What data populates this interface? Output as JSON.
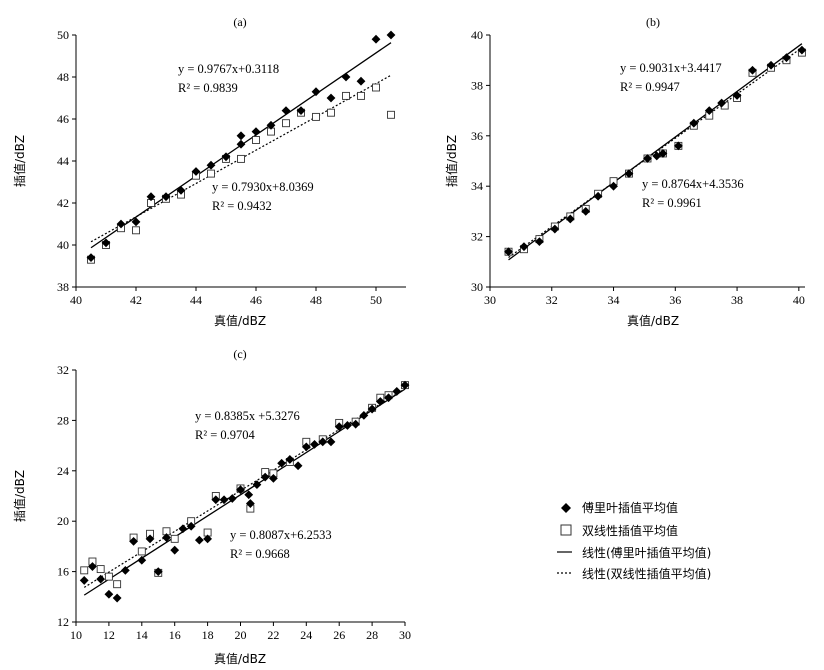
{
  "legend": {
    "items": [
      {
        "label": "傅里叶插值平均值",
        "kind": "diamond"
      },
      {
        "label": "双线性插值平均值",
        "kind": "square"
      },
      {
        "label": "线性(傅里叶插值平均值)",
        "kind": "solid"
      },
      {
        "label": "线性(双线性插值平均值)",
        "kind": "dotted"
      }
    ]
  },
  "chart_data": [
    {
      "type": "scatter",
      "title": "(a)",
      "xlabel": "真值/dBZ",
      "ylabel": "插值/dBZ",
      "xlim": [
        40,
        51
      ],
      "ylim": [
        38,
        50
      ],
      "xticks": [
        40,
        42,
        44,
        46,
        48,
        50
      ],
      "yticks": [
        38,
        40,
        42,
        44,
        46,
        48,
        50
      ],
      "series": [
        {
          "marker": "diamond",
          "x": [
            40.5,
            41.0,
            41.5,
            42.0,
            42.5,
            43.0,
            43.5,
            44.0,
            44.5,
            45.0,
            45.5,
            45.5,
            46.0,
            46.5,
            47.0,
            47.5,
            48.0,
            48.5,
            49.0,
            49.5,
            50.0,
            50.5
          ],
          "y": [
            39.4,
            40.1,
            41.0,
            41.1,
            42.3,
            42.3,
            42.6,
            43.5,
            43.8,
            44.2,
            44.8,
            45.2,
            45.4,
            45.7,
            46.4,
            46.4,
            47.3,
            47.0,
            48.0,
            47.8,
            49.8,
            50.0
          ]
        },
        {
          "marker": "square",
          "x": [
            40.5,
            41.0,
            41.5,
            42.0,
            42.5,
            43.0,
            43.5,
            44.0,
            44.5,
            45.0,
            45.5,
            46.0,
            46.5,
            47.0,
            47.5,
            48.0,
            48.5,
            49.0,
            49.5,
            50.0,
            50.5
          ],
          "y": [
            39.3,
            40.0,
            40.8,
            40.7,
            42.0,
            42.2,
            42.4,
            43.3,
            43.4,
            44.1,
            44.1,
            45.0,
            45.4,
            45.8,
            46.3,
            46.1,
            46.3,
            47.1,
            47.1,
            47.5,
            46.2
          ]
        }
      ],
      "fits": [
        {
          "style": "solid",
          "slope": 0.9767,
          "intercept": 0.3118,
          "equation": "y = 0.9767x+0.3118",
          "r2": "R² = 0.9839"
        },
        {
          "style": "dotted",
          "slope": 0.793,
          "intercept": 8.0369,
          "equation": "y = 0.7930x+8.0369",
          "r2": "R² = 0.9432"
        }
      ]
    },
    {
      "type": "scatter",
      "title": "(b)",
      "xlabel": "真值/dBZ",
      "ylabel": "插值/dBZ",
      "xlim": [
        30,
        40.2
      ],
      "ylim": [
        30,
        40
      ],
      "xticks": [
        30,
        32,
        34,
        36,
        38,
        40
      ],
      "yticks": [
        30,
        32,
        34,
        36,
        38,
        40
      ],
      "series": [
        {
          "marker": "diamond",
          "x": [
            30.6,
            31.1,
            31.6,
            32.1,
            32.6,
            33.1,
            33.5,
            34.0,
            34.5,
            35.1,
            35.4,
            35.6,
            36.1,
            36.6,
            37.1,
            37.5,
            38.0,
            38.5,
            39.1,
            39.6,
            40.1
          ],
          "y": [
            31.4,
            31.6,
            31.8,
            32.3,
            32.7,
            33.0,
            33.6,
            34.0,
            34.5,
            35.1,
            35.2,
            35.3,
            35.6,
            36.5,
            37.0,
            37.3,
            37.6,
            38.6,
            38.8,
            39.1,
            39.4
          ]
        },
        {
          "marker": "square",
          "x": [
            30.6,
            31.1,
            31.6,
            32.1,
            32.6,
            33.1,
            33.5,
            34.0,
            34.5,
            35.1,
            35.6,
            36.1,
            36.6,
            37.1,
            37.6,
            38.0,
            38.5,
            39.1,
            39.6,
            40.1
          ],
          "y": [
            31.4,
            31.5,
            31.9,
            32.4,
            32.8,
            33.1,
            33.7,
            34.2,
            34.5,
            35.1,
            35.3,
            35.6,
            36.4,
            36.8,
            37.2,
            37.5,
            38.5,
            38.7,
            39.0,
            39.3
          ]
        }
      ],
      "fits": [
        {
          "style": "solid",
          "slope": 0.9031,
          "intercept": 3.4417,
          "equation": "y = 0.9031x+3.4417",
          "r2": "R² = 0.9947"
        },
        {
          "style": "dotted",
          "slope": 0.8764,
          "intercept": 4.3536,
          "equation": "y = 0.8764x+4.3536",
          "r2": "R² = 0.9961"
        }
      ]
    },
    {
      "type": "scatter",
      "title": "(c)",
      "xlabel": "真值/dBZ",
      "ylabel": "插值/dBZ",
      "xlim": [
        10,
        30
      ],
      "ylim": [
        12,
        32
      ],
      "xticks": [
        10,
        12,
        14,
        16,
        18,
        20,
        22,
        24,
        26,
        28,
        30
      ],
      "yticks": [
        12,
        16,
        20,
        24,
        28,
        32
      ],
      "series": [
        {
          "marker": "diamond",
          "x": [
            10.5,
            11.0,
            11.5,
            12.0,
            12.5,
            13.0,
            13.5,
            14.0,
            14.5,
            15.0,
            15.5,
            16.0,
            16.5,
            17.0,
            17.5,
            18.0,
            18.5,
            19.0,
            19.5,
            20.0,
            20.5,
            20.6,
            21.0,
            21.5,
            22.0,
            22.5,
            23.0,
            23.5,
            24.0,
            24.5,
            25.0,
            25.5,
            26.0,
            26.5,
            27.0,
            27.5,
            28.0,
            28.5,
            29.0,
            29.5,
            30.0
          ],
          "y": [
            15.3,
            16.4,
            15.4,
            14.2,
            13.9,
            16.1,
            18.4,
            16.9,
            18.6,
            16.0,
            18.7,
            17.7,
            19.4,
            19.6,
            18.5,
            18.6,
            21.7,
            21.7,
            21.8,
            22.5,
            22.1,
            21.4,
            22.9,
            23.5,
            23.4,
            24.6,
            24.9,
            24.4,
            25.9,
            26.1,
            26.3,
            26.3,
            27.5,
            27.6,
            27.7,
            28.4,
            28.9,
            29.5,
            29.8,
            30.3,
            30.8
          ]
        },
        {
          "marker": "square",
          "x": [
            10.5,
            11.0,
            11.5,
            12.0,
            12.5,
            13.5,
            14.0,
            14.5,
            15.0,
            15.5,
            16.0,
            17.0,
            18.0,
            18.5,
            20.0,
            20.6,
            21.5,
            22.0,
            23.0,
            24.0,
            25.0,
            26.0,
            27.0,
            28.0,
            28.5,
            29.0,
            30.0
          ],
          "y": [
            16.1,
            16.8,
            16.2,
            15.6,
            15.0,
            18.7,
            17.6,
            19.0,
            15.9,
            19.2,
            18.6,
            20.0,
            19.1,
            22.0,
            22.6,
            21.0,
            23.9,
            23.8,
            24.7,
            26.3,
            26.5,
            27.8,
            27.9,
            29.0,
            29.8,
            30.0,
            30.8
          ]
        }
      ],
      "fits": [
        {
          "style": "solid",
          "slope": 0.8385,
          "intercept": 5.3276,
          "equation": "y = 0.8385x +5.3276",
          "r2": "R² = 0.9704"
        },
        {
          "style": "dotted",
          "slope": 0.8087,
          "intercept": 6.2533,
          "equation": "y = 0.8087x+6.2533",
          "r2": "R² = 0.9668"
        }
      ]
    }
  ]
}
